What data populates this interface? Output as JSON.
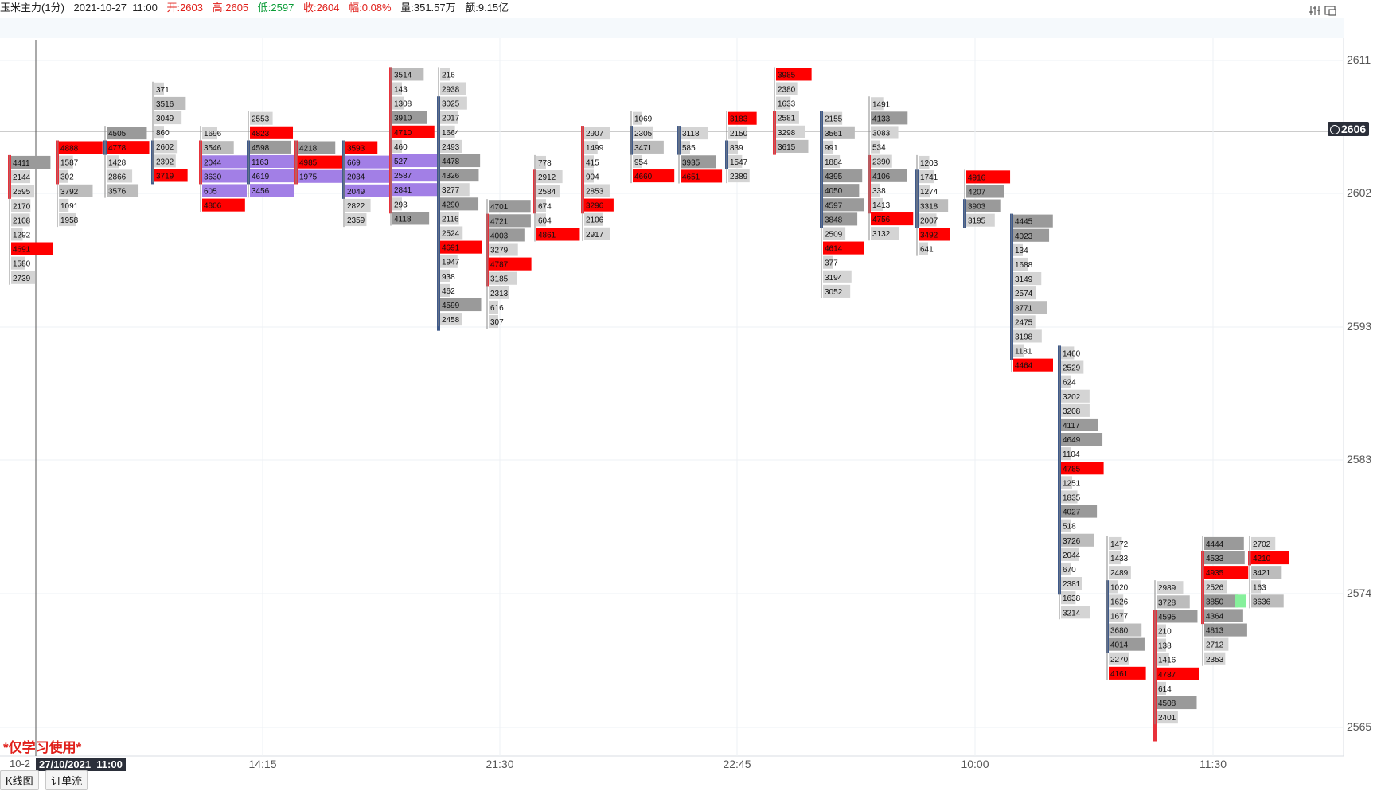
{
  "header": {
    "symbol": "玉米主力",
    "period": "(1分)",
    "datetime": "2021-10-27  11:00",
    "open": "开:2603",
    "high": "高:2605",
    "low": "低:2597",
    "close": "收:2604",
    "change": "幅:0.08%",
    "volume": "量:351.57万",
    "amount": "额:9.15亿"
  },
  "disclaimer": "*仅学习使用*",
  "tabs": [
    "K线图",
    "订单流"
  ],
  "cursor": {
    "date": "27/10/2021  11:00",
    "left_label": "10-2"
  },
  "price_tag": "2606",
  "icons": [
    "settings-icon",
    "screenshot-icon",
    "crosshair-icon"
  ],
  "colors": {
    "bull": "#e8313a",
    "bear": "#3f5a8a",
    "hot": "#ff0000",
    "light": "#d4d4d4",
    "mid": "#bcbcbc",
    "dark": "#9a9a9a",
    "poc": "#a27fe6",
    "green": "#86f09b"
  },
  "chart_data": {
    "type": "table",
    "title": "",
    "ylim": [
      2564,
      2612
    ],
    "y_ticks": [
      2611,
      2602,
      2593,
      2583,
      2574,
      2565
    ],
    "x_ticks": [
      "14:15",
      "21:30",
      "22:45",
      "10:00",
      "11:30"
    ],
    "columns": [
      {
        "top": 2604,
        "bull": true,
        "body": [
          2604,
          2602
        ],
        "values": [
          4411,
          2144,
          2595,
          2170,
          2108,
          1292,
          4691,
          1580,
          2739
        ],
        "hot": [
          6
        ]
      },
      {
        "top": 2605,
        "bull": true,
        "body": [
          2605,
          2603
        ],
        "values": [
          4888,
          1587,
          302,
          3792,
          1091,
          1958
        ],
        "hot": [
          0
        ]
      },
      {
        "top": 2606,
        "bull": false,
        "body": [
          2605,
          2605
        ],
        "values": [
          4505,
          4778,
          1428,
          2866,
          3576
        ],
        "hot": [
          1
        ]
      },
      {
        "top": 2609,
        "bull": false,
        "body": [
          2605,
          2603
        ],
        "values": [
          371,
          3516,
          3049,
          860,
          2602,
          2392,
          3719
        ],
        "hot": [
          6
        ]
      },
      {
        "top": 2606,
        "bull": true,
        "body": [
          2605,
          2603
        ],
        "values": [
          1696,
          3546,
          2044,
          3630,
          605,
          4806
        ],
        "hot": [
          5
        ],
        "poc": [
          2,
          3,
          4
        ]
      },
      {
        "top": 2607,
        "bull": false,
        "body": [
          2605,
          2603
        ],
        "values": [
          2553,
          4823,
          4598,
          1163,
          4619,
          3456
        ],
        "hot": [
          1
        ],
        "poc": [
          3,
          4,
          5
        ]
      },
      {
        "top": 2605,
        "bull": true,
        "body": [
          2605,
          2603
        ],
        "values": [
          4218,
          4985,
          1975
        ],
        "hot": [
          1
        ],
        "poc": [
          1,
          2,
          3
        ]
      },
      {
        "top": 2605,
        "bull": false,
        "body": [
          2605,
          2602
        ],
        "values": [
          3593,
          669,
          2034,
          2049,
          2822,
          2359
        ],
        "hot": [
          0
        ],
        "poc": [
          1,
          2,
          3
        ]
      },
      {
        "top": 2610,
        "bull": true,
        "body": [
          2610,
          2601
        ],
        "values": [
          3514,
          143,
          1308,
          3910,
          4710,
          460,
          527,
          2587,
          2841,
          293,
          4118
        ],
        "hot": [
          4
        ],
        "poc": [
          6,
          7,
          8
        ]
      },
      {
        "top": 2610,
        "bull": false,
        "body": [
          2608,
          2593
        ],
        "values": [
          216,
          2938,
          3025,
          2017,
          1664,
          2493,
          4478,
          4326,
          3277,
          4290,
          2116,
          2524,
          4691,
          1947,
          938,
          462,
          4599,
          2458
        ],
        "hot": [
          12
        ]
      },
      {
        "top": 2601,
        "bull": true,
        "body": [
          2600,
          2596
        ],
        "values": [
          4701,
          4721,
          4003,
          3279,
          4787,
          3185,
          2313,
          616,
          307
        ],
        "hot": [
          4
        ]
      },
      {
        "top": 2604,
        "bull": true,
        "body": [
          2603,
          2601
        ],
        "values": [
          778,
          2912,
          2584,
          674,
          604,
          4861
        ],
        "hot": [
          5
        ]
      },
      {
        "top": 2606,
        "bull": true,
        "body": [
          2606,
          2601
        ],
        "values": [
          2907,
          1499,
          415,
          904,
          2853,
          3296,
          2106,
          2917
        ],
        "hot": [
          5
        ]
      },
      {
        "top": 2607,
        "bull": false,
        "body": [
          2606,
          2605
        ],
        "values": [
          1069,
          2305,
          3471,
          954,
          4660
        ],
        "hot": [
          4
        ]
      },
      {
        "top": 2606,
        "bull": false,
        "body": [
          2606,
          2605
        ],
        "values": [
          3118,
          585,
          3935,
          4651
        ],
        "hot": [
          3
        ]
      },
      {
        "top": 2607,
        "bull": false,
        "body": [
          2605,
          2604
        ],
        "values": [
          3183,
          2150,
          839,
          1547,
          2389
        ],
        "hot": [
          0
        ]
      },
      {
        "top": 2610,
        "bull": true,
        "body": [
          2607,
          2605
        ],
        "values": [
          3985,
          2380,
          1633,
          2581,
          3298,
          3615
        ],
        "hot": [
          0
        ]
      },
      {
        "top": 2607,
        "bull": false,
        "body": [
          2607,
          2600
        ],
        "values": [
          2155,
          3561,
          991,
          1884,
          4395,
          4050,
          4597,
          3848,
          2509,
          4614,
          377,
          3194,
          3052
        ],
        "hot": [
          9
        ]
      },
      {
        "top": 2608,
        "bull": true,
        "body": [
          2604,
          2601
        ],
        "values": [
          1491,
          4133,
          3083,
          534,
          2390,
          4106,
          338,
          1413,
          4756,
          3132
        ],
        "hot": [
          8
        ]
      },
      {
        "top": 2604,
        "bull": false,
        "body": [
          2603,
          2600
        ],
        "values": [
          1203,
          1741,
          1274,
          3318,
          2007,
          3492,
          641
        ],
        "hot": [
          5
        ]
      },
      {
        "top": 2603,
        "bull": false,
        "body": [
          2601,
          2600
        ],
        "values": [
          4916,
          4207,
          3903,
          3195
        ],
        "hot": [
          0
        ]
      },
      {
        "top": 2600,
        "bull": false,
        "body": [
          2600,
          2591
        ],
        "values": [
          4445,
          4023,
          134,
          1688,
          3149,
          2574,
          3771,
          2475,
          3198,
          1181,
          4464
        ],
        "hot": [
          10
        ]
      },
      {
        "top": 2591,
        "bull": false,
        "body": [
          2591,
          2575
        ],
        "values": [
          1460,
          2529,
          624,
          3202,
          3208,
          4117,
          4649,
          1104,
          4785,
          1251,
          1835,
          4027,
          518,
          3726,
          2044,
          670,
          2381,
          1638,
          3214
        ],
        "hot": [
          8
        ]
      },
      {
        "top": 2578,
        "bull": false,
        "body": [
          2575,
          2571
        ],
        "values": [
          1472,
          1433,
          2489,
          1020,
          1626,
          1677,
          3680,
          4014,
          2270,
          4161
        ],
        "hot": [
          9
        ]
      },
      {
        "top": 2575,
        "bull": true,
        "body": [
          2573,
          2565
        ],
        "values": [
          2989,
          3728,
          4595,
          210,
          138,
          1416,
          4787,
          614,
          4508,
          2401
        ],
        "hot": [
          6
        ]
      },
      {
        "top": 2578,
        "bull": true,
        "body": [
          2577,
          2573
        ],
        "values": [
          4444,
          4533,
          4935,
          2526,
          3850,
          4364,
          4813,
          2712,
          2353
        ],
        "hot": [
          2
        ],
        "green": [
          4
        ]
      },
      {
        "top": 2578,
        "bull": true,
        "body": [
          2577,
          2577
        ],
        "values": [
          2702,
          4210,
          3421,
          163,
          3636
        ],
        "hot": [
          1
        ]
      }
    ]
  }
}
